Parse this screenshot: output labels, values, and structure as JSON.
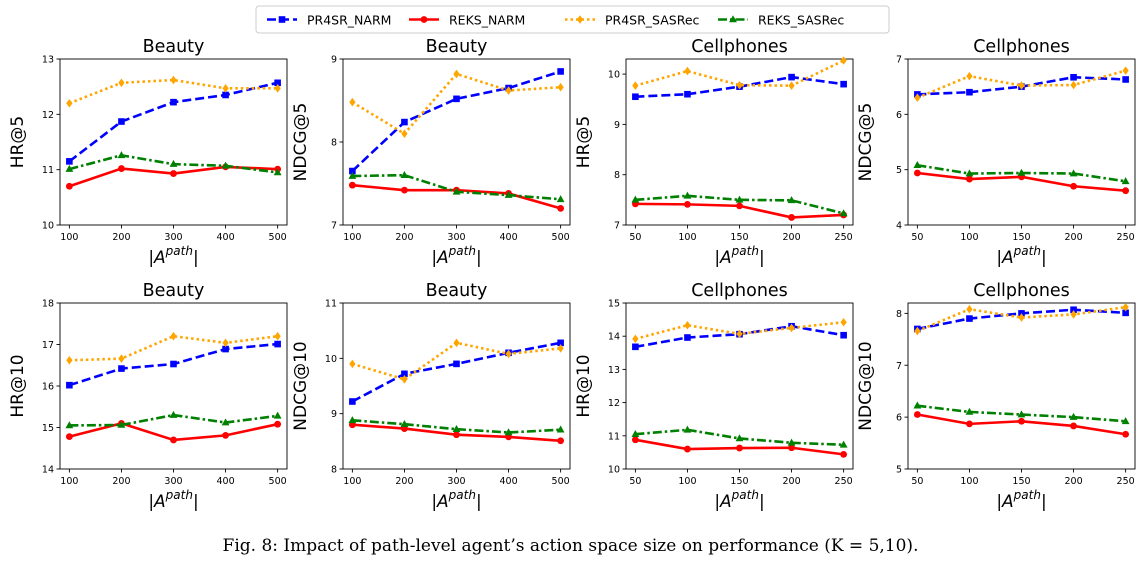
{
  "caption": "Fig. 8: Impact of path-level agent’s action space size on performance (K = 5,10).",
  "legend": {
    "entries": [
      {
        "name": "PR4SR_NARM",
        "color": "#0000ff",
        "dash": "dashed",
        "marker": "square"
      },
      {
        "name": "REKS_NARM",
        "color": "#ff0000",
        "dash": "solid",
        "marker": "circle"
      },
      {
        "name": "PR4SR_SASRec",
        "color": "#ffa500",
        "dash": "dotted",
        "marker": "diamond"
      },
      {
        "name": "REKS_SASRec",
        "color": "#008000",
        "dash": "dashdot",
        "marker": "triangle"
      }
    ]
  },
  "chart_data": [
    {
      "type": "line",
      "title": "Beauty",
      "xlabel": "|A^path|",
      "ylabel": "HR@5",
      "x": [
        100,
        200,
        300,
        400,
        500
      ],
      "ylim": [
        10,
        13
      ],
      "yticks": [
        10,
        11,
        12,
        13
      ],
      "series": [
        {
          "name": "PR4SR_NARM",
          "values": [
            11.15,
            11.87,
            12.22,
            12.35,
            12.57
          ]
        },
        {
          "name": "REKS_NARM",
          "values": [
            10.7,
            11.02,
            10.93,
            11.05,
            11.01
          ]
        },
        {
          "name": "PR4SR_SASRec",
          "values": [
            12.2,
            12.57,
            12.62,
            12.47,
            12.47
          ]
        },
        {
          "name": "REKS_SASRec",
          "values": [
            11.01,
            11.26,
            11.1,
            11.07,
            10.95
          ]
        }
      ]
    },
    {
      "type": "line",
      "title": "Beauty",
      "xlabel": "|A^path|",
      "ylabel": "NDCG@5",
      "x": [
        100,
        200,
        300,
        400,
        500
      ],
      "ylim": [
        7,
        9
      ],
      "yticks": [
        7,
        8,
        9
      ],
      "series": [
        {
          "name": "PR4SR_NARM",
          "values": [
            7.65,
            8.24,
            8.52,
            8.65,
            8.85
          ]
        },
        {
          "name": "REKS_NARM",
          "values": [
            7.48,
            7.42,
            7.42,
            7.38,
            7.2
          ]
        },
        {
          "name": "PR4SR_SASRec",
          "values": [
            8.48,
            8.1,
            8.82,
            8.62,
            8.66
          ]
        },
        {
          "name": "REKS_SASRec",
          "values": [
            7.59,
            7.6,
            7.4,
            7.36,
            7.31
          ]
        }
      ]
    },
    {
      "type": "line",
      "title": "Cellphones",
      "xlabel": "|A^path|",
      "ylabel": "HR@5",
      "x": [
        50,
        100,
        150,
        200,
        250
      ],
      "ylim": [
        7,
        10.3
      ],
      "yticks": [
        7,
        8,
        9,
        10
      ],
      "series": [
        {
          "name": "PR4SR_NARM",
          "values": [
            9.55,
            9.6,
            9.75,
            9.94,
            9.8
          ]
        },
        {
          "name": "REKS_NARM",
          "values": [
            7.42,
            7.41,
            7.38,
            7.15,
            7.2
          ]
        },
        {
          "name": "PR4SR_SASRec",
          "values": [
            9.77,
            10.06,
            9.78,
            9.77,
            10.27
          ]
        },
        {
          "name": "REKS_SASRec",
          "values": [
            7.5,
            7.58,
            7.5,
            7.49,
            7.23
          ]
        }
      ]
    },
    {
      "type": "line",
      "title": "Cellphones",
      "xlabel": "|A^path|",
      "ylabel": "NDCG@5",
      "x": [
        50,
        100,
        150,
        200,
        250
      ],
      "ylim": [
        4,
        7
      ],
      "yticks": [
        4,
        5,
        6,
        7
      ],
      "series": [
        {
          "name": "PR4SR_NARM",
          "values": [
            6.36,
            6.4,
            6.5,
            6.67,
            6.63
          ]
        },
        {
          "name": "REKS_NARM",
          "values": [
            4.94,
            4.83,
            4.87,
            4.7,
            4.62
          ]
        },
        {
          "name": "PR4SR_SASRec",
          "values": [
            6.3,
            6.69,
            6.52,
            6.53,
            6.79
          ]
        },
        {
          "name": "REKS_SASRec",
          "values": [
            5.08,
            4.93,
            4.94,
            4.93,
            4.79
          ]
        }
      ]
    },
    {
      "type": "line",
      "title": "Beauty",
      "xlabel": "|A^path|",
      "ylabel": "HR@10",
      "x": [
        100,
        200,
        300,
        400,
        500
      ],
      "ylim": [
        14,
        18
      ],
      "yticks": [
        14,
        15,
        16,
        17,
        18
      ],
      "series": [
        {
          "name": "PR4SR_NARM",
          "values": [
            16.02,
            16.42,
            16.53,
            16.89,
            17.01
          ]
        },
        {
          "name": "REKS_NARM",
          "values": [
            14.78,
            15.1,
            14.7,
            14.81,
            15.08
          ]
        },
        {
          "name": "PR4SR_SASRec",
          "values": [
            16.62,
            16.66,
            17.2,
            17.04,
            17.2
          ]
        },
        {
          "name": "REKS_SASRec",
          "values": [
            15.05,
            15.06,
            15.3,
            15.12,
            15.28
          ]
        }
      ]
    },
    {
      "type": "line",
      "title": "Beauty",
      "xlabel": "|A^path|",
      "ylabel": "NDCG@10",
      "x": [
        100,
        200,
        300,
        400,
        500
      ],
      "ylim": [
        8,
        11
      ],
      "yticks": [
        8,
        9,
        10,
        11
      ],
      "series": [
        {
          "name": "PR4SR_NARM",
          "values": [
            9.22,
            9.72,
            9.9,
            10.1,
            10.28
          ]
        },
        {
          "name": "REKS_NARM",
          "values": [
            8.8,
            8.73,
            8.62,
            8.58,
            8.51
          ]
        },
        {
          "name": "PR4SR_SASRec",
          "values": [
            9.9,
            9.62,
            10.28,
            10.08,
            10.18
          ]
        },
        {
          "name": "REKS_SASRec",
          "values": [
            8.88,
            8.81,
            8.72,
            8.66,
            8.71
          ]
        }
      ]
    },
    {
      "type": "line",
      "title": "Cellphones",
      "xlabel": "|A^path|",
      "ylabel": "HR@10",
      "x": [
        50,
        100,
        150,
        200,
        250
      ],
      "ylim": [
        10,
        15
      ],
      "yticks": [
        10,
        11,
        12,
        13,
        14,
        15
      ],
      "series": [
        {
          "name": "PR4SR_NARM",
          "values": [
            13.68,
            13.96,
            14.06,
            14.3,
            14.03
          ]
        },
        {
          "name": "REKS_NARM",
          "values": [
            10.88,
            10.6,
            10.63,
            10.64,
            10.44
          ]
        },
        {
          "name": "PR4SR_SASRec",
          "values": [
            13.92,
            14.33,
            14.07,
            14.25,
            14.42
          ]
        },
        {
          "name": "REKS_SASRec",
          "values": [
            11.05,
            11.18,
            10.92,
            10.79,
            10.73
          ]
        }
      ]
    },
    {
      "type": "line",
      "title": "Cellphones",
      "xlabel": "|A^path|",
      "ylabel": "NDCG@10",
      "x": [
        50,
        100,
        150,
        200,
        250
      ],
      "ylim": [
        5,
        8.2
      ],
      "yticks": [
        5,
        6,
        7,
        8
      ],
      "series": [
        {
          "name": "PR4SR_NARM",
          "values": [
            7.7,
            7.9,
            8.0,
            8.07,
            8.01
          ]
        },
        {
          "name": "REKS_NARM",
          "values": [
            6.05,
            5.87,
            5.92,
            5.83,
            5.67
          ]
        },
        {
          "name": "PR4SR_SASRec",
          "values": [
            7.66,
            8.08,
            7.92,
            7.98,
            8.12
          ]
        },
        {
          "name": "REKS_SASRec",
          "values": [
            6.22,
            6.1,
            6.05,
            6.0,
            5.92
          ]
        }
      ]
    }
  ]
}
